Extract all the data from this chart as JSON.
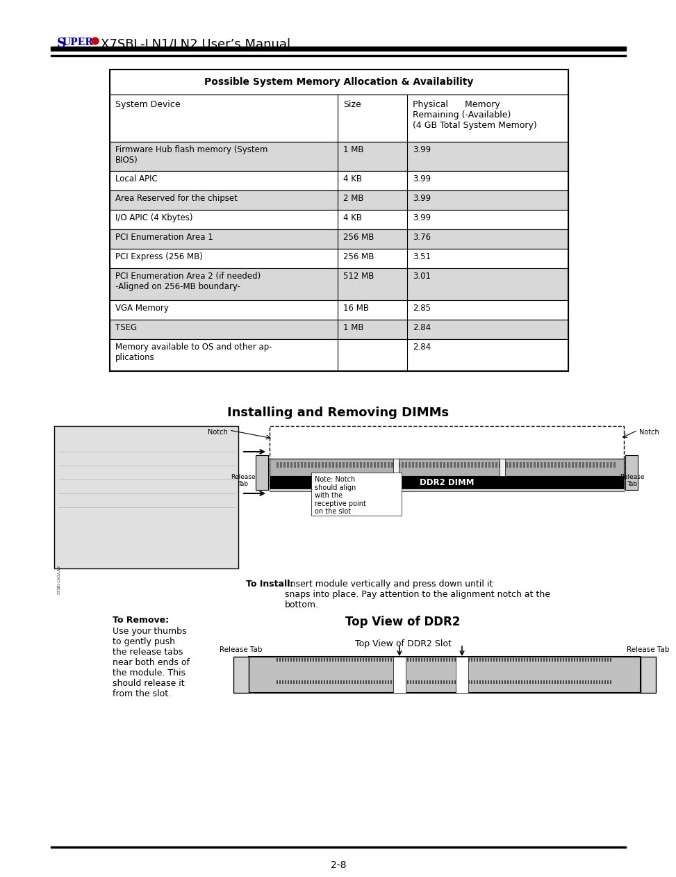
{
  "page_title_super": "Super",
  "page_title_rest": " X7SBL-LN1/LN2 User’s Manual",
  "table_title": "Possible System Memory Allocation & Availability",
  "col_headers": [
    "System Device",
    "Size",
    "Physical      Memory\nRemaining (-Available)\n(4 GB Total System Memory)"
  ],
  "rows": [
    [
      "Firmware Hub flash memory (System\nBIOS)",
      "1 MB",
      "3.99",
      "gray"
    ],
    [
      "Local APIC",
      "4 KB",
      "3.99",
      "white"
    ],
    [
      "Area Reserved for the chipset",
      "2 MB",
      "3.99",
      "gray"
    ],
    [
      "I/O APIC (4 Kbytes)",
      "4 KB",
      "3.99",
      "white"
    ],
    [
      "PCI Enumeration Area 1",
      "256 MB",
      "3.76",
      "gray"
    ],
    [
      "PCI Express (256 MB)",
      "256 MB",
      "3.51",
      "white"
    ],
    [
      "PCI Enumeration Area 2 (if needed)\n-Aligned on 256-MB boundary-",
      "512 MB",
      "3.01",
      "gray"
    ],
    [
      "VGA Memory",
      "16 MB",
      "2.85",
      "white"
    ],
    [
      "TSEG",
      "1 MB",
      "2.84",
      "gray"
    ],
    [
      "Memory available to OS and other ap-\nplications",
      "",
      "2.84",
      "white"
    ]
  ],
  "section_title": "Installing and Removing DIMMs",
  "install_text_bold": "To Install:",
  "install_text": " Insert module vertically and press down until it\nsnaps into place. Pay attention to the alignment notch at the\nbottom.",
  "remove_title": "To Remove:",
  "remove_text": "Use your thumbs\nto gently push\nthe release tabs\nnear both ends of\nthe module. This\nshould release it\nfrom the slot.",
  "top_view_title": "Top View of DDR2",
  "top_view_subtitle": "Top View of DDR2 Slot",
  "page_number": "2-8",
  "bg_color": "#ffffff",
  "gray_row": "#d8d8d8",
  "table_border": "#000000",
  "super_color": "#0000bb",
  "bullet_color": "#cc0000"
}
